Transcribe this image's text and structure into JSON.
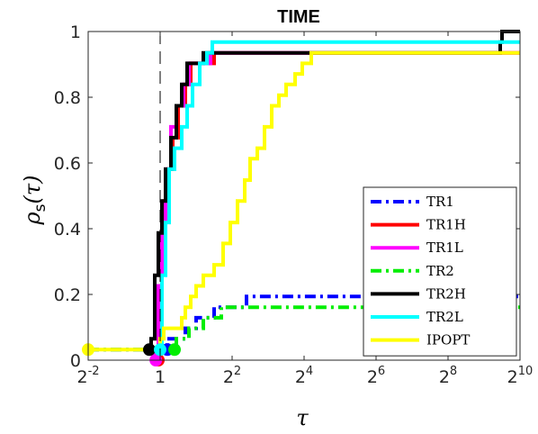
{
  "chart_data": {
    "type": "line",
    "title": "TIME",
    "xlabel": "τ",
    "ylabel": {
      "symbol": "ρ",
      "subscript": "s",
      "arg": "(τ)"
    },
    "x_scale": "log2",
    "xlim_exponent": [
      -2,
      10
    ],
    "ylim": [
      0,
      1
    ],
    "x_ticks": [
      {
        "base": "2",
        "exp": "-2"
      },
      {
        "base": "1",
        "exp": ""
      },
      {
        "base": "2",
        "exp": "2"
      },
      {
        "base": "2",
        "exp": "4"
      },
      {
        "base": "2",
        "exp": "6"
      },
      {
        "base": "2",
        "exp": "8"
      },
      {
        "base": "2",
        "exp": "10"
      }
    ],
    "x_tick_exponents": [
      -2,
      0,
      2,
      4,
      6,
      8,
      10
    ],
    "y_ticks": [
      "0",
      "0.2",
      "0.4",
      "0.6",
      "0.8",
      "1"
    ],
    "y_tick_values": [
      0,
      0.2,
      0.4,
      0.6,
      0.8,
      1
    ],
    "reference_line_exponent": 0,
    "grid": false,
    "legend_position": "lower-right",
    "series": [
      {
        "name": "TR1",
        "color": "#0000ff",
        "dash": "dashdot",
        "marker_exponent": 0.2,
        "steps": [
          [
            -2,
            0.032
          ],
          [
            0.15,
            0.032
          ],
          [
            0.2,
            0.065
          ],
          [
            0.7,
            0.097
          ],
          [
            1.0,
            0.129
          ],
          [
            1.5,
            0.161
          ],
          [
            2.4,
            0.194
          ],
          [
            10.0,
            0.194
          ]
        ]
      },
      {
        "name": "TR1H",
        "color": "#ff0000",
        "dash": "solid",
        "marker_exponent": -0.05,
        "steps": [
          [
            -0.1,
            0.0
          ],
          [
            -0.05,
            0.032
          ],
          [
            0.0,
            0.194
          ],
          [
            0.05,
            0.355
          ],
          [
            0.1,
            0.484
          ],
          [
            0.2,
            0.581
          ],
          [
            0.35,
            0.677
          ],
          [
            0.5,
            0.774
          ],
          [
            0.7,
            0.839
          ],
          [
            0.85,
            0.903
          ],
          [
            1.5,
            0.935
          ],
          [
            10.0,
            0.935
          ]
        ]
      },
      {
        "name": "TR1L",
        "color": "#ff00ff",
        "dash": "solid",
        "marker_exponent": -0.12,
        "steps": [
          [
            -0.18,
            0.0
          ],
          [
            -0.12,
            0.032
          ],
          [
            -0.05,
            0.226
          ],
          [
            0.05,
            0.419
          ],
          [
            0.15,
            0.581
          ],
          [
            0.3,
            0.71
          ],
          [
            0.45,
            0.774
          ],
          [
            0.65,
            0.839
          ],
          [
            0.8,
            0.903
          ],
          [
            1.4,
            0.935
          ],
          [
            10.0,
            0.935
          ]
        ]
      },
      {
        "name": "TR2",
        "color": "#00ee00",
        "dash": "dashdot",
        "marker_exponent": 0.4,
        "steps": [
          [
            -2,
            0.032
          ],
          [
            0.4,
            0.032
          ],
          [
            0.45,
            0.065
          ],
          [
            0.8,
            0.097
          ],
          [
            1.2,
            0.129
          ],
          [
            1.7,
            0.161
          ],
          [
            10.0,
            0.161
          ]
        ]
      },
      {
        "name": "TR2H",
        "color": "#000000",
        "dash": "solid",
        "marker_exponent": -0.3,
        "steps": [
          [
            -0.35,
            0.032
          ],
          [
            -0.25,
            0.065
          ],
          [
            -0.15,
            0.258
          ],
          [
            -0.05,
            0.387
          ],
          [
            0.05,
            0.484
          ],
          [
            0.15,
            0.581
          ],
          [
            0.3,
            0.677
          ],
          [
            0.45,
            0.774
          ],
          [
            0.6,
            0.839
          ],
          [
            0.75,
            0.903
          ],
          [
            1.1,
            0.903
          ],
          [
            1.2,
            0.935
          ],
          [
            9.4,
            0.935
          ],
          [
            9.45,
            0.968
          ],
          [
            9.5,
            1.0
          ],
          [
            10.0,
            1.0
          ]
        ]
      },
      {
        "name": "TR2L",
        "color": "#00ffff",
        "dash": "solid",
        "marker_exponent": 0.0,
        "steps": [
          [
            0.0,
            0.032
          ],
          [
            0.05,
            0.258
          ],
          [
            0.15,
            0.419
          ],
          [
            0.25,
            0.581
          ],
          [
            0.4,
            0.645
          ],
          [
            0.6,
            0.71
          ],
          [
            0.75,
            0.774
          ],
          [
            0.9,
            0.839
          ],
          [
            1.1,
            0.903
          ],
          [
            1.3,
            0.935
          ],
          [
            1.45,
            0.968
          ],
          [
            10.0,
            0.968
          ]
        ]
      },
      {
        "name": "IPOPT",
        "color": "#ffff00",
        "dash": "solid",
        "marker_exponent": -2,
        "steps": [
          [
            -2,
            0.032
          ],
          [
            0.0,
            0.065
          ],
          [
            0.1,
            0.097
          ],
          [
            0.5,
            0.097
          ],
          [
            0.6,
            0.129
          ],
          [
            0.7,
            0.161
          ],
          [
            0.85,
            0.194
          ],
          [
            1.0,
            0.226
          ],
          [
            1.2,
            0.258
          ],
          [
            1.5,
            0.29
          ],
          [
            1.75,
            0.355
          ],
          [
            1.95,
            0.419
          ],
          [
            2.15,
            0.484
          ],
          [
            2.35,
            0.548
          ],
          [
            2.5,
            0.613
          ],
          [
            2.7,
            0.645
          ],
          [
            2.9,
            0.71
          ],
          [
            3.1,
            0.774
          ],
          [
            3.3,
            0.806
          ],
          [
            3.5,
            0.839
          ],
          [
            3.75,
            0.871
          ],
          [
            3.95,
            0.903
          ],
          [
            4.2,
            0.935
          ],
          [
            10.0,
            0.935
          ]
        ]
      }
    ]
  }
}
